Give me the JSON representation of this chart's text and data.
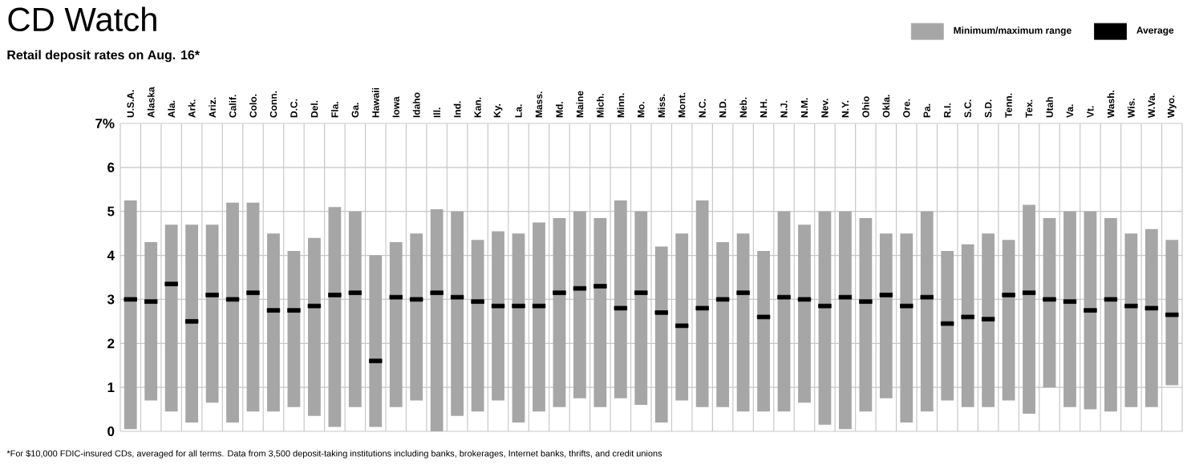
{
  "chart_data": {
    "type": "bar",
    "title": "CD Watch",
    "subtitle": "Retail deposit rates on Aug. 16*",
    "categories": [
      "U.S.A.",
      "Alaska",
      "Ala.",
      "Ark.",
      "Ariz.",
      "Calif.",
      "Colo.",
      "Conn.",
      "D.C.",
      "Del.",
      "Fla.",
      "Ga.",
      "Hawaii",
      "Iowa",
      "Idaho",
      "Ill.",
      "Ind.",
      "Kan.",
      "Ky.",
      "La.",
      "Mass.",
      "Md.",
      "Maine",
      "Mich.",
      "Minn.",
      "Mo.",
      "Miss.",
      "Mont.",
      "N.C.",
      "N.D.",
      "Neb.",
      "N.H.",
      "N.J.",
      "N.M.",
      "Nev.",
      "N.Y.",
      "Ohio",
      "Okla.",
      "Ore.",
      "Pa.",
      "R.I.",
      "S.C.",
      "S.D.",
      "Tenn.",
      "Tex.",
      "Utah",
      "Va.",
      "Vt.",
      "Wash.",
      "Wis.",
      "W.Va.",
      "Wyo."
    ],
    "series": [
      {
        "name": "Minimum/maximum range",
        "color": "#a6a6a6",
        "base": [
          0.05,
          0.7,
          0.45,
          0.2,
          0.65,
          0.2,
          0.45,
          0.45,
          0.55,
          0.35,
          0.1,
          0.55,
          0.1,
          0.55,
          0.7,
          0.0,
          0.35,
          0.45,
          0.7,
          0.2,
          0.45,
          0.55,
          0.75,
          0.55,
          0.75,
          0.6,
          0.2,
          0.7,
          0.55,
          0.55,
          0.45,
          0.45,
          0.45,
          0.65,
          0.15,
          0.05,
          0.45,
          0.75,
          0.2,
          0.45,
          0.7,
          0.55,
          0.55,
          0.7,
          0.4,
          1.0,
          0.55,
          0.5,
          0.45,
          0.55,
          0.55,
          1.05
        ],
        "values": [
          5.2,
          3.6,
          4.25,
          4.5,
          4.05,
          5.0,
          4.75,
          4.05,
          3.55,
          4.05,
          5.0,
          4.45,
          3.9,
          3.75,
          3.8,
          5.05,
          4.65,
          3.9,
          3.85,
          4.3,
          4.3,
          4.3,
          4.25,
          4.3,
          4.5,
          4.4,
          4.0,
          3.8,
          4.7,
          3.75,
          4.05,
          3.65,
          4.55,
          4.05,
          4.85,
          4.95,
          4.4,
          3.75,
          4.3,
          4.55,
          3.4,
          3.7,
          3.95,
          3.65,
          4.75,
          3.85,
          4.45,
          4.5,
          4.4,
          3.95,
          4.05,
          3.3
        ]
      },
      {
        "name": "Average",
        "type": "scatter",
        "color": "#000000",
        "marker": "square",
        "values": [
          3.0,
          2.95,
          3.35,
          2.5,
          3.1,
          3.0,
          3.15,
          2.75,
          2.75,
          2.85,
          3.1,
          3.15,
          1.6,
          3.05,
          3.0,
          3.15,
          3.05,
          2.95,
          2.85,
          2.85,
          2.85,
          3.15,
          3.25,
          3.3,
          2.8,
          3.15,
          2.7,
          2.4,
          2.8,
          3.0,
          3.15,
          2.6,
          3.05,
          3.0,
          2.85,
          3.05,
          2.95,
          3.1,
          2.85,
          3.05,
          2.45,
          2.6,
          2.55,
          3.1,
          3.15,
          3.0,
          2.95,
          2.75,
          3.0,
          2.85,
          2.8,
          2.65
        ]
      }
    ],
    "ylim": [
      0,
      7
    ],
    "yticks": [
      0,
      1,
      2,
      3,
      4,
      5,
      6,
      {
        "value": 7,
        "label": "7%"
      }
    ],
    "grid": true,
    "legend": "top right",
    "annotations": [
      "*For $10,000 FDIC-insured CDs, averaged for all terms. Data from 3,500 deposit-taking institutions including banks, brokerages, Internet banks, thrifts, and credit unions"
    ]
  }
}
